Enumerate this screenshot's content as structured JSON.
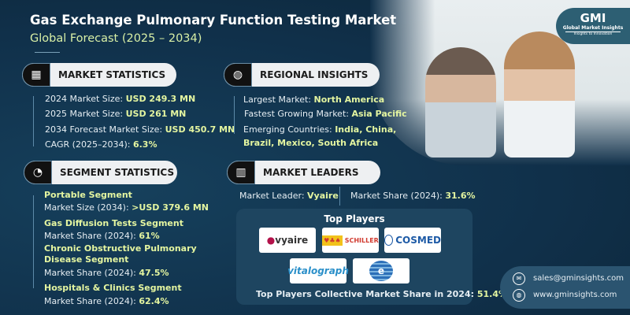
{
  "header": {
    "title": "Gas Exchange Pulmonary Function Testing Market",
    "subtitle": "Global Forecast (2025 – 2034)"
  },
  "brand": {
    "logo": "GMI",
    "name": "Global Market Insights",
    "tagline": "Insights to Innovation"
  },
  "market_statistics": {
    "heading": "MARKET STATISTICS",
    "items": [
      {
        "label": "2024 Market Size: ",
        "value": "USD 249.3 MN"
      },
      {
        "label": "2025 Market Size: ",
        "value": "USD 261 MN"
      },
      {
        "label": "2034 Forecast Market Size: ",
        "value": "USD 450.7 MN"
      },
      {
        "label": "CAGR (2025–2034): ",
        "value": "6.3%"
      }
    ]
  },
  "regional_insights": {
    "heading": "REGIONAL INSIGHTS",
    "items": [
      {
        "label": "Largest Market: ",
        "value": "North America"
      },
      {
        "label": "Fastest Growing Market: ",
        "value": "Asia Pacific"
      },
      {
        "label": "Emerging Countries: ",
        "value": "India, China,",
        "value2": "Brazil, Mexico, South Africa"
      }
    ]
  },
  "segment_statistics": {
    "heading": "SEGMENT STATISTICS",
    "items": [
      {
        "name": "Portable Segment",
        "label": "Market Size (2034): ",
        "value": ">USD 379.6 MN"
      },
      {
        "name": "Gas Diffusion Tests Segment",
        "label": "Market Share (2024): ",
        "value": "61%"
      },
      {
        "name": "Chronic Obstructive Pulmonary",
        "name2": "Disease Segment",
        "label": "Market Share (2024): ",
        "value": "47.5%"
      },
      {
        "name": "Hospitals & Clinics Segment",
        "label": "Market Share (2024): ",
        "value": "62.4%"
      }
    ]
  },
  "market_leaders": {
    "heading": "MARKET LEADERS",
    "leader_label": "Market Leader: ",
    "leader": "Vyaire",
    "share_label": "Market Share (2024): ",
    "share": "31.6%",
    "top_players_title": "Top Players",
    "players": [
      "vyaire",
      "SCHILLER",
      "COSMED",
      "vitalograph",
      "e"
    ],
    "collective_label": "Top Players Collective Market Share in 2024: ",
    "collective": "51.4%"
  },
  "contact": {
    "email": "sales@gminsights.com",
    "website": "www.gminsights.com"
  },
  "colors": {
    "background": "#10304a",
    "highlight": "#e4f5a0"
  }
}
